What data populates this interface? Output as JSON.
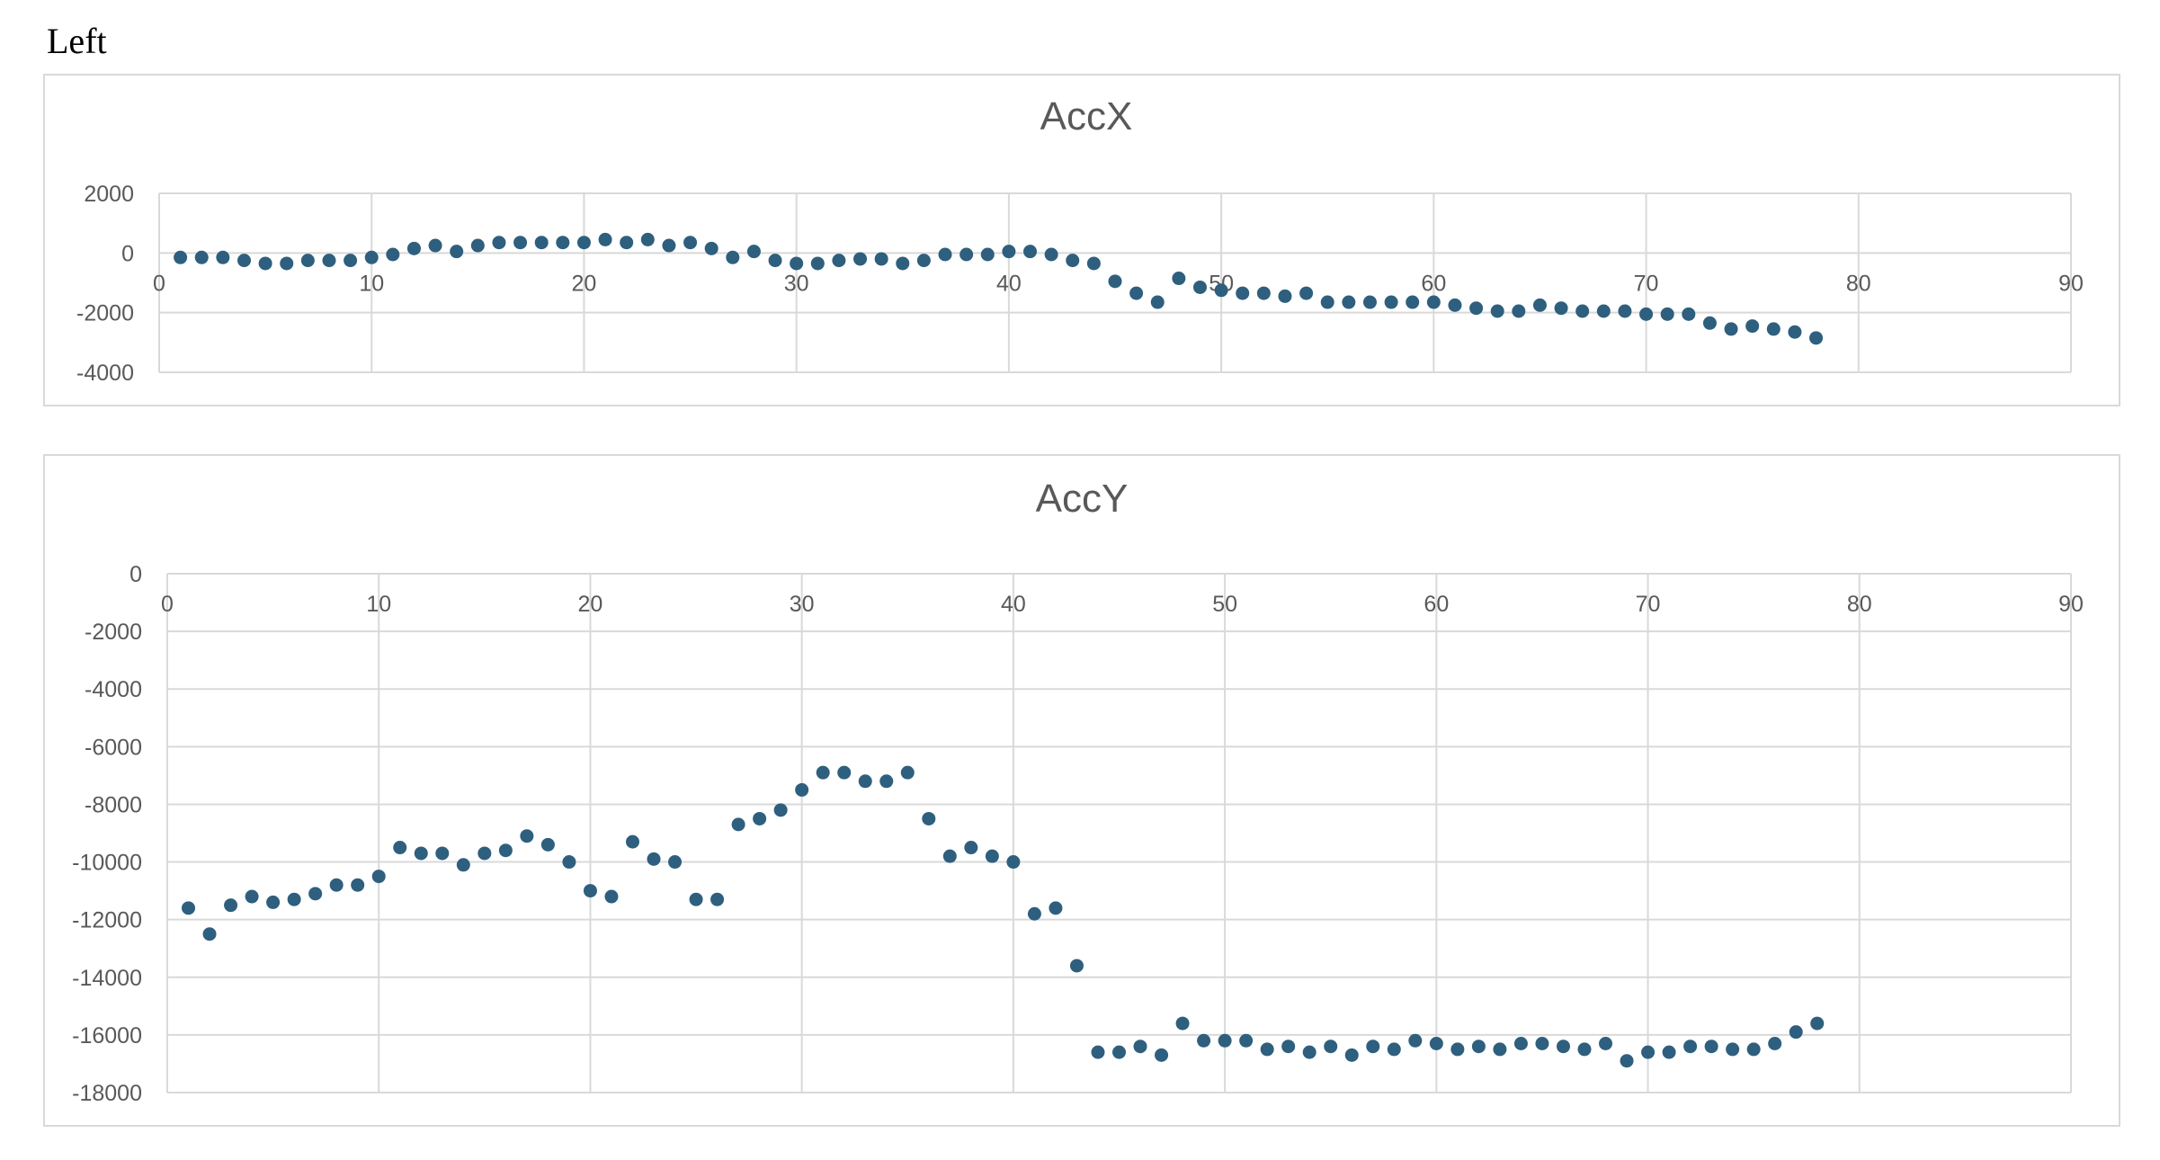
{
  "page": {
    "label": "Left"
  },
  "colors": {
    "marker": "#2e5f7e",
    "grid": "#d9d9d9",
    "text": "#595959"
  },
  "chart_data": [
    {
      "type": "scatter",
      "title": "AccX",
      "xlabel": "",
      "ylabel": "",
      "xlim": [
        0,
        90
      ],
      "ylim": [
        -4000,
        2000
      ],
      "x_ticks": [
        0,
        10,
        20,
        30,
        40,
        50,
        60,
        70,
        80,
        90
      ],
      "y_ticks": [
        2000,
        0,
        -2000,
        -4000
      ],
      "grid": true,
      "legend": "none",
      "x": [
        1,
        2,
        3,
        4,
        5,
        6,
        7,
        8,
        9,
        10,
        11,
        12,
        13,
        14,
        15,
        16,
        17,
        18,
        19,
        20,
        21,
        22,
        23,
        24,
        25,
        26,
        27,
        28,
        29,
        30,
        31,
        32,
        33,
        34,
        35,
        36,
        37,
        38,
        39,
        40,
        41,
        42,
        43,
        44,
        45,
        46,
        47,
        48,
        49,
        50,
        51,
        52,
        53,
        54,
        55,
        56,
        57,
        58,
        59,
        60,
        61,
        62,
        63,
        64,
        65,
        66,
        67,
        68,
        69,
        70,
        71,
        72,
        73,
        74,
        75,
        76,
        77,
        78
      ],
      "y": [
        -150,
        -150,
        -150,
        -250,
        -350,
        -350,
        -250,
        -250,
        -250,
        -150,
        -50,
        150,
        250,
        50,
        250,
        350,
        350,
        350,
        350,
        350,
        450,
        350,
        450,
        250,
        350,
        150,
        -150,
        50,
        -250,
        -350,
        -350,
        -250,
        -200,
        -200,
        -350,
        -250,
        -50,
        -50,
        -50,
        50,
        50,
        -50,
        -250,
        -350,
        -950,
        -1350,
        -1650,
        -850,
        -1150,
        -1250,
        -1350,
        -1350,
        -1450,
        -1350,
        -1650,
        -1650,
        -1650,
        -1650,
        -1650,
        -1650,
        -1750,
        -1850,
        -1950,
        -1950,
        -1750,
        -1850,
        -1950,
        -1950,
        -1950,
        -2050,
        -2050,
        -2050,
        -2350,
        -2550,
        -2450,
        -2550,
        -2650,
        -2850
      ]
    },
    {
      "type": "scatter",
      "title": "AccY",
      "xlabel": "",
      "ylabel": "",
      "xlim": [
        0,
        90
      ],
      "ylim": [
        -18000,
        0
      ],
      "x_ticks": [
        0,
        10,
        20,
        30,
        40,
        50,
        60,
        70,
        80,
        90
      ],
      "y_ticks": [
        0,
        -2000,
        -4000,
        -6000,
        -8000,
        -10000,
        -12000,
        -14000,
        -16000,
        -18000
      ],
      "grid": true,
      "legend": "none",
      "x": [
        1,
        2,
        3,
        4,
        5,
        6,
        7,
        8,
        9,
        10,
        11,
        12,
        13,
        14,
        15,
        16,
        17,
        18,
        19,
        20,
        21,
        22,
        23,
        24,
        25,
        26,
        27,
        28,
        29,
        30,
        31,
        32,
        33,
        34,
        35,
        36,
        37,
        38,
        39,
        40,
        41,
        42,
        43,
        44,
        45,
        46,
        47,
        48,
        49,
        50,
        51,
        52,
        53,
        54,
        55,
        56,
        57,
        58,
        59,
        60,
        61,
        62,
        63,
        64,
        65,
        66,
        67,
        68,
        69,
        70,
        71,
        72,
        73,
        74,
        75,
        76,
        77,
        78
      ],
      "y": [
        -11600,
        -12500,
        -11500,
        -11200,
        -11400,
        -11300,
        -11100,
        -10800,
        -10800,
        -10500,
        -9500,
        -9700,
        -9700,
        -10100,
        -9700,
        -9600,
        -9100,
        -9400,
        -10000,
        -11000,
        -11200,
        -9300,
        -9900,
        -10000,
        -11300,
        -11300,
        -8700,
        -8500,
        -8200,
        -7500,
        -6900,
        -6900,
        -7200,
        -7200,
        -6900,
        -8500,
        -9800,
        -9500,
        -9800,
        -10000,
        -11800,
        -11600,
        -13600,
        -16600,
        -16600,
        -16400,
        -16700,
        -15600,
        -16200,
        -16200,
        -16200,
        -16500,
        -16400,
        -16600,
        -16400,
        -16700,
        -16400,
        -16500,
        -16200,
        -16300,
        -16500,
        -16400,
        -16500,
        -16300,
        -16300,
        -16400,
        -16500,
        -16300,
        -16900,
        -16600,
        -16600,
        -16400,
        -16400,
        -16500,
        -16500,
        -16300,
        -15900,
        -15600
      ]
    }
  ]
}
